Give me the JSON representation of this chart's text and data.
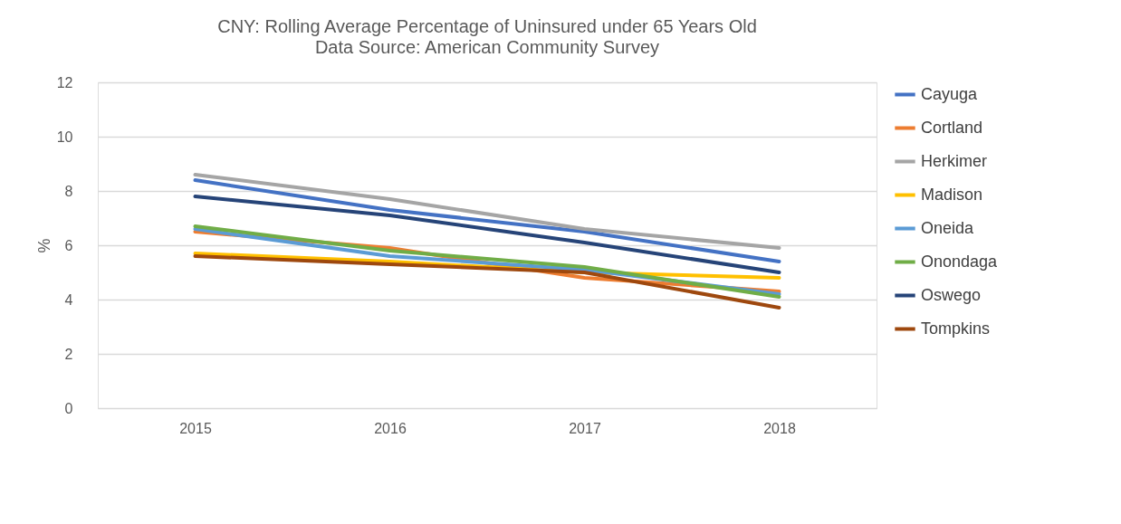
{
  "chart_data": {
    "type": "line",
    "title": "CNY: Rolling Average Percentage of Uninsured under 65 Years Old",
    "subtitle": "Data Source: American Community Survey",
    "ylabel": "%",
    "categories": [
      "2015",
      "2016",
      "2017",
      "2018"
    ],
    "series": [
      {
        "name": "Cayuga",
        "color": "#4472c4",
        "values": [
          8.4,
          7.3,
          6.5,
          5.4
        ]
      },
      {
        "name": "Cortland",
        "color": "#ed7d31",
        "values": [
          6.5,
          5.9,
          4.8,
          4.3
        ]
      },
      {
        "name": "Herkimer",
        "color": "#a5a5a5",
        "values": [
          8.6,
          7.7,
          6.6,
          5.9
        ]
      },
      {
        "name": "Madison",
        "color": "#ffc000",
        "values": [
          5.7,
          5.4,
          5.0,
          4.8
        ]
      },
      {
        "name": "Oneida",
        "color": "#5b9bd5",
        "values": [
          6.6,
          5.6,
          5.1,
          4.2
        ]
      },
      {
        "name": "Onondaga",
        "color": "#70ad47",
        "values": [
          6.7,
          5.8,
          5.2,
          4.1
        ]
      },
      {
        "name": "Oswego",
        "color": "#264478",
        "values": [
          7.8,
          7.1,
          6.1,
          5.0
        ]
      },
      {
        "name": "Tompkins",
        "color": "#9e480e",
        "values": [
          5.6,
          5.3,
          5.0,
          3.7
        ]
      }
    ],
    "ylim": [
      0,
      12
    ],
    "yticks": [
      0,
      2,
      4,
      6,
      8,
      10,
      12
    ],
    "grid": "y",
    "legend": "right",
    "marker": "none",
    "line_style": "solid"
  }
}
